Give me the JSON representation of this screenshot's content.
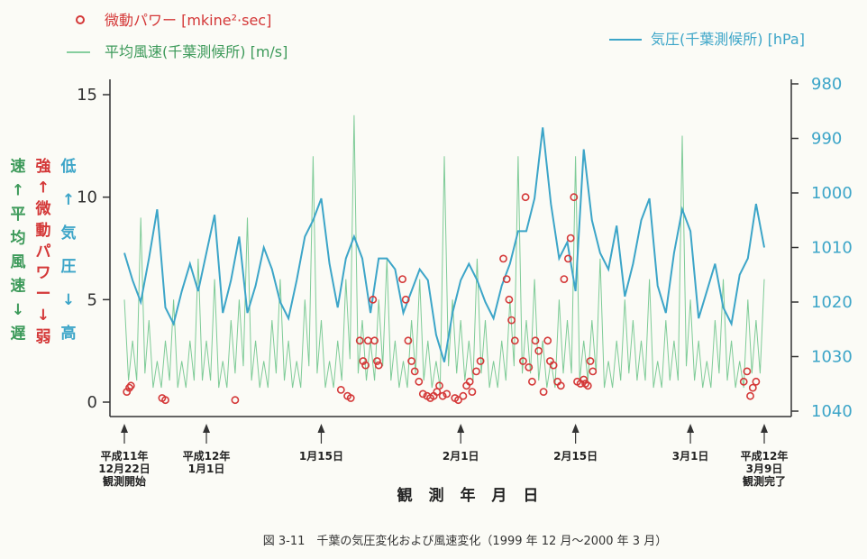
{
  "legend": {
    "micro": "微動パワー [mkine²·sec]",
    "wind": "平均風速(千葉測候所) [m/s]",
    "pressure": "気圧(千葉測候所) [hPa]"
  },
  "side_labels": {
    "wind_col": [
      "速",
      "↑",
      "平",
      "均",
      "風",
      "速",
      "↓",
      "遅"
    ],
    "micro_col": [
      "強",
      "↑",
      "微",
      "動",
      "パ",
      "ワ",
      "ー",
      "↓",
      "弱"
    ],
    "pressure_col": [
      "低",
      "↑",
      "気",
      "圧",
      "↓",
      "高"
    ]
  },
  "date_markers": [
    {
      "lines": [
        "平成11年",
        "12月22日",
        "観測開始"
      ]
    },
    {
      "lines": [
        "平成12年",
        "1月1日"
      ]
    },
    {
      "lines": [
        "1月15日"
      ]
    },
    {
      "lines": [
        "2月1日"
      ]
    },
    {
      "lines": [
        "2月15日"
      ]
    },
    {
      "lines": [
        "3月1日"
      ]
    },
    {
      "lines": [
        "平成12年",
        "3月9日",
        "観測完了"
      ]
    }
  ],
  "x_axis_title": "観 測 年 月 日",
  "caption": "図 3-11　千葉の気圧変化および風速変化（1999 年 12 月〜2000 年 3 月）",
  "colors": {
    "micro": "#d43838",
    "wind": "#5fbf80",
    "pressure": "#3ca5c8",
    "axis": "#333333"
  },
  "chart_data": {
    "type": "line",
    "x_unit": "days since 1999-12-22",
    "xlim": [
      0,
      78
    ],
    "left_axis": {
      "ticks": [
        "0",
        "5",
        "10",
        "15"
      ],
      "ylim": [
        -0.5,
        15.5
      ]
    },
    "right_axis": {
      "ticks": [
        "980",
        "990",
        "1000",
        "1010",
        "1020",
        "1030",
        "1040"
      ],
      "ylim": [
        978,
        1041
      ],
      "inverted": true
    },
    "date_marker_days": [
      0,
      10,
      24,
      41,
      55,
      69,
      78
    ],
    "series": [
      {
        "name": "気圧(千葉測候所)",
        "axis": "right",
        "x": [
          0,
          1,
          2,
          3,
          4,
          5,
          6,
          7,
          8,
          9,
          10,
          11,
          12,
          13,
          14,
          15,
          16,
          17,
          18,
          19,
          20,
          21,
          22,
          23,
          24,
          25,
          26,
          27,
          28,
          29,
          30,
          31,
          32,
          33,
          34,
          35,
          36,
          37,
          38,
          39,
          40,
          41,
          42,
          43,
          44,
          45,
          46,
          47,
          48,
          49,
          50,
          51,
          52,
          53,
          54,
          55,
          56,
          57,
          58,
          59,
          60,
          61,
          62,
          63,
          64,
          65,
          66,
          67,
          68,
          69,
          70,
          71,
          72,
          73,
          74,
          75,
          76,
          77,
          78
        ],
        "y": [
          1011,
          1016,
          1020,
          1012,
          1003,
          1021,
          1024,
          1018,
          1013,
          1018,
          1011,
          1004,
          1022,
          1016,
          1008,
          1022,
          1017,
          1010,
          1014,
          1020,
          1023,
          1016,
          1008,
          1005,
          1001,
          1013,
          1021,
          1012,
          1008,
          1012,
          1022,
          1012,
          1012,
          1014,
          1022,
          1018,
          1014,
          1016,
          1026,
          1031,
          1022,
          1016,
          1013,
          1016,
          1020,
          1023,
          1017,
          1013,
          1007,
          1007,
          1001,
          988,
          1002,
          1012,
          1009,
          1018,
          992,
          1005,
          1011,
          1014,
          1006,
          1019,
          1013,
          1005,
          1001,
          1017,
          1022,
          1011,
          1003,
          1007,
          1023,
          1018,
          1013,
          1021,
          1024,
          1015,
          1012,
          1002,
          1010
        ]
      },
      {
        "name": "平均風速(千葉測候所)",
        "axis": "left",
        "x": [
          0,
          1,
          2,
          3,
          4,
          5,
          6,
          7,
          8,
          9,
          10,
          11,
          12,
          13,
          14,
          15,
          16,
          17,
          18,
          19,
          20,
          21,
          22,
          23,
          24,
          25,
          26,
          27,
          28,
          29,
          30,
          31,
          32,
          33,
          34,
          35,
          36,
          37,
          38,
          39,
          40,
          41,
          42,
          43,
          44,
          45,
          46,
          47,
          48,
          49,
          50,
          51,
          52,
          53,
          54,
          55,
          56,
          57,
          58,
          59,
          60,
          61,
          62,
          63,
          64,
          65,
          66,
          67,
          68,
          69,
          70,
          71,
          72,
          73,
          74,
          75,
          76,
          77,
          78
        ],
        "y": [
          5,
          3,
          9,
          4,
          2,
          3,
          5,
          2,
          3,
          7,
          3,
          6,
          2,
          4,
          5,
          9,
          3,
          2,
          4,
          6,
          3,
          2,
          5,
          12,
          4,
          2,
          3,
          6,
          14,
          4,
          3,
          5,
          7,
          3,
          2,
          4,
          6,
          3,
          2,
          12,
          5,
          4,
          3,
          7,
          4,
          2,
          3,
          5,
          12,
          4,
          6,
          3,
          2,
          5,
          4,
          12,
          3,
          4,
          7,
          2,
          3,
          5,
          4,
          3,
          6,
          2,
          4,
          3,
          13,
          5,
          3,
          2,
          4,
          6,
          3,
          2,
          5,
          4,
          6
        ]
      },
      {
        "name": "微動パワー",
        "axis": "left",
        "type": "scatter",
        "x": [
          0.3,
          0.6,
          0.8,
          4.6,
          5.0,
          13.5,
          26.4,
          27.2,
          27.6,
          28.7,
          29.1,
          29.4,
          29.7,
          30.3,
          30.5,
          30.8,
          31.0,
          33.9,
          34.3,
          34.6,
          35.0,
          35.4,
          35.9,
          36.4,
          36.9,
          37.3,
          37.7,
          38.1,
          38.4,
          38.8,
          39.3,
          40.3,
          40.7,
          41.3,
          41.7,
          42.1,
          42.4,
          42.9,
          43.4,
          46.2,
          46.6,
          46.9,
          47.2,
          47.6,
          48.6,
          48.9,
          49.3,
          49.7,
          50.1,
          50.5,
          51.1,
          51.6,
          51.9,
          52.3,
          52.8,
          53.2,
          53.6,
          54.1,
          54.4,
          54.8,
          55.2,
          55.6,
          56.0,
          56.2,
          56.5,
          56.8,
          57.1,
          75.5,
          75.9,
          76.3,
          76.6,
          77.0
        ],
        "y": [
          0.5,
          0.7,
          0.8,
          0.2,
          0.1,
          0.1,
          0.6,
          0.3,
          0.2,
          3,
          2,
          1.8,
          3,
          5,
          3,
          2,
          1.8,
          6,
          5,
          3,
          2,
          1.5,
          1,
          0.4,
          0.3,
          0.2,
          0.3,
          0.5,
          0.8,
          0.3,
          0.4,
          0.2,
          0.1,
          0.3,
          0.8,
          1,
          0.5,
          1.5,
          2,
          7,
          6,
          5,
          4,
          3,
          2,
          10,
          1.7,
          1,
          3,
          2.5,
          0.5,
          3,
          2,
          1.8,
          1,
          0.8,
          6,
          7,
          8,
          10,
          1,
          0.9,
          1.1,
          0.9,
          0.8,
          2,
          1.5,
          1,
          1.5,
          0.3,
          0.7,
          1
        ]
      }
    ]
  }
}
